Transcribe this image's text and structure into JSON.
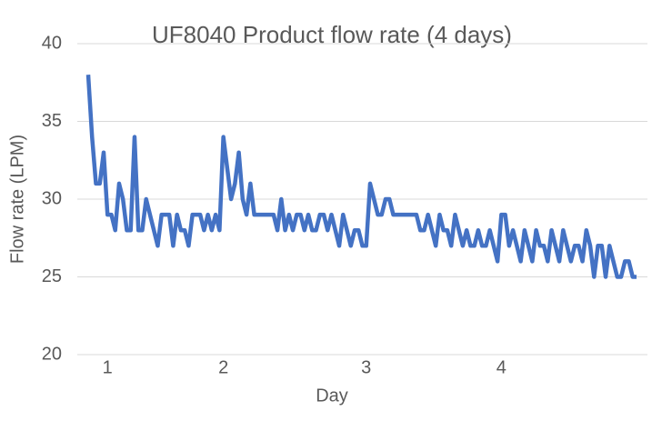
{
  "chart_data": {
    "type": "line",
    "title": "UF8040 Product flow rate (4 days)",
    "x_label": "Day",
    "y_label": "Flow rate (LPM)",
    "categories": [
      null,
      null,
      null,
      null,
      null,
      "1",
      null,
      null,
      null,
      null,
      null,
      null,
      null,
      null,
      null,
      null,
      null,
      null,
      null,
      null,
      null,
      null,
      null,
      null,
      null,
      null,
      null,
      null,
      null,
      null,
      null,
      null,
      null,
      null,
      null,
      "2",
      null,
      null,
      null,
      null,
      null,
      null,
      null,
      null,
      null,
      null,
      null,
      null,
      null,
      null,
      null,
      null,
      null,
      null,
      null,
      null,
      null,
      null,
      null,
      null,
      null,
      null,
      null,
      null,
      null,
      null,
      null,
      null,
      null,
      null,
      null,
      null,
      "3",
      null,
      null,
      null,
      null,
      null,
      null,
      null,
      null,
      null,
      null,
      null,
      null,
      null,
      null,
      null,
      null,
      null,
      null,
      null,
      null,
      null,
      null,
      null,
      null,
      null,
      null,
      null,
      null,
      null,
      null,
      null,
      null,
      null,
      null,
      "4",
      null,
      null,
      null,
      null,
      null,
      null,
      null,
      null,
      null,
      null,
      null,
      null,
      null,
      null,
      null,
      null,
      null,
      null,
      null,
      null,
      null,
      null,
      null,
      null,
      null,
      null,
      null,
      null,
      null,
      null,
      null,
      null,
      null,
      null,
      null
    ],
    "series": [
      {
        "name": "Flow rate",
        "color": "#4472c4",
        "values": [
          38,
          34,
          31,
          31,
          33,
          29,
          29,
          28,
          31,
          30,
          28,
          28,
          34,
          28,
          28,
          30,
          29,
          28,
          27,
          29,
          29,
          29,
          27,
          29,
          28,
          28,
          27,
          29,
          29,
          29,
          28,
          29,
          28,
          29,
          28,
          34,
          32,
          30,
          31,
          33,
          30,
          29,
          31,
          29,
          29,
          29,
          29,
          29,
          29,
          28,
          30,
          28,
          29,
          28,
          29,
          29,
          28,
          29,
          28,
          28,
          29,
          29,
          28,
          29,
          28,
          27,
          29,
          28,
          27,
          28,
          28,
          27,
          27,
          31,
          30,
          29,
          29,
          30,
          30,
          29,
          29,
          29,
          29,
          29,
          29,
          29,
          28,
          28,
          29,
          28,
          27,
          29,
          28,
          28,
          27,
          29,
          28,
          27,
          28,
          27,
          27,
          28,
          27,
          27,
          28,
          27,
          26,
          29,
          29,
          27,
          28,
          27,
          26,
          28,
          27,
          26,
          28,
          27,
          27,
          26,
          28,
          27,
          26,
          28,
          27,
          26,
          27,
          27,
          26,
          28,
          27,
          25,
          27,
          27,
          25,
          27,
          26,
          25,
          25,
          26,
          26,
          25,
          25
        ]
      }
    ],
    "ylim": [
      20,
      40
    ],
    "yticks": [
      20,
      25,
      30,
      35,
      40
    ],
    "grid": true
  }
}
